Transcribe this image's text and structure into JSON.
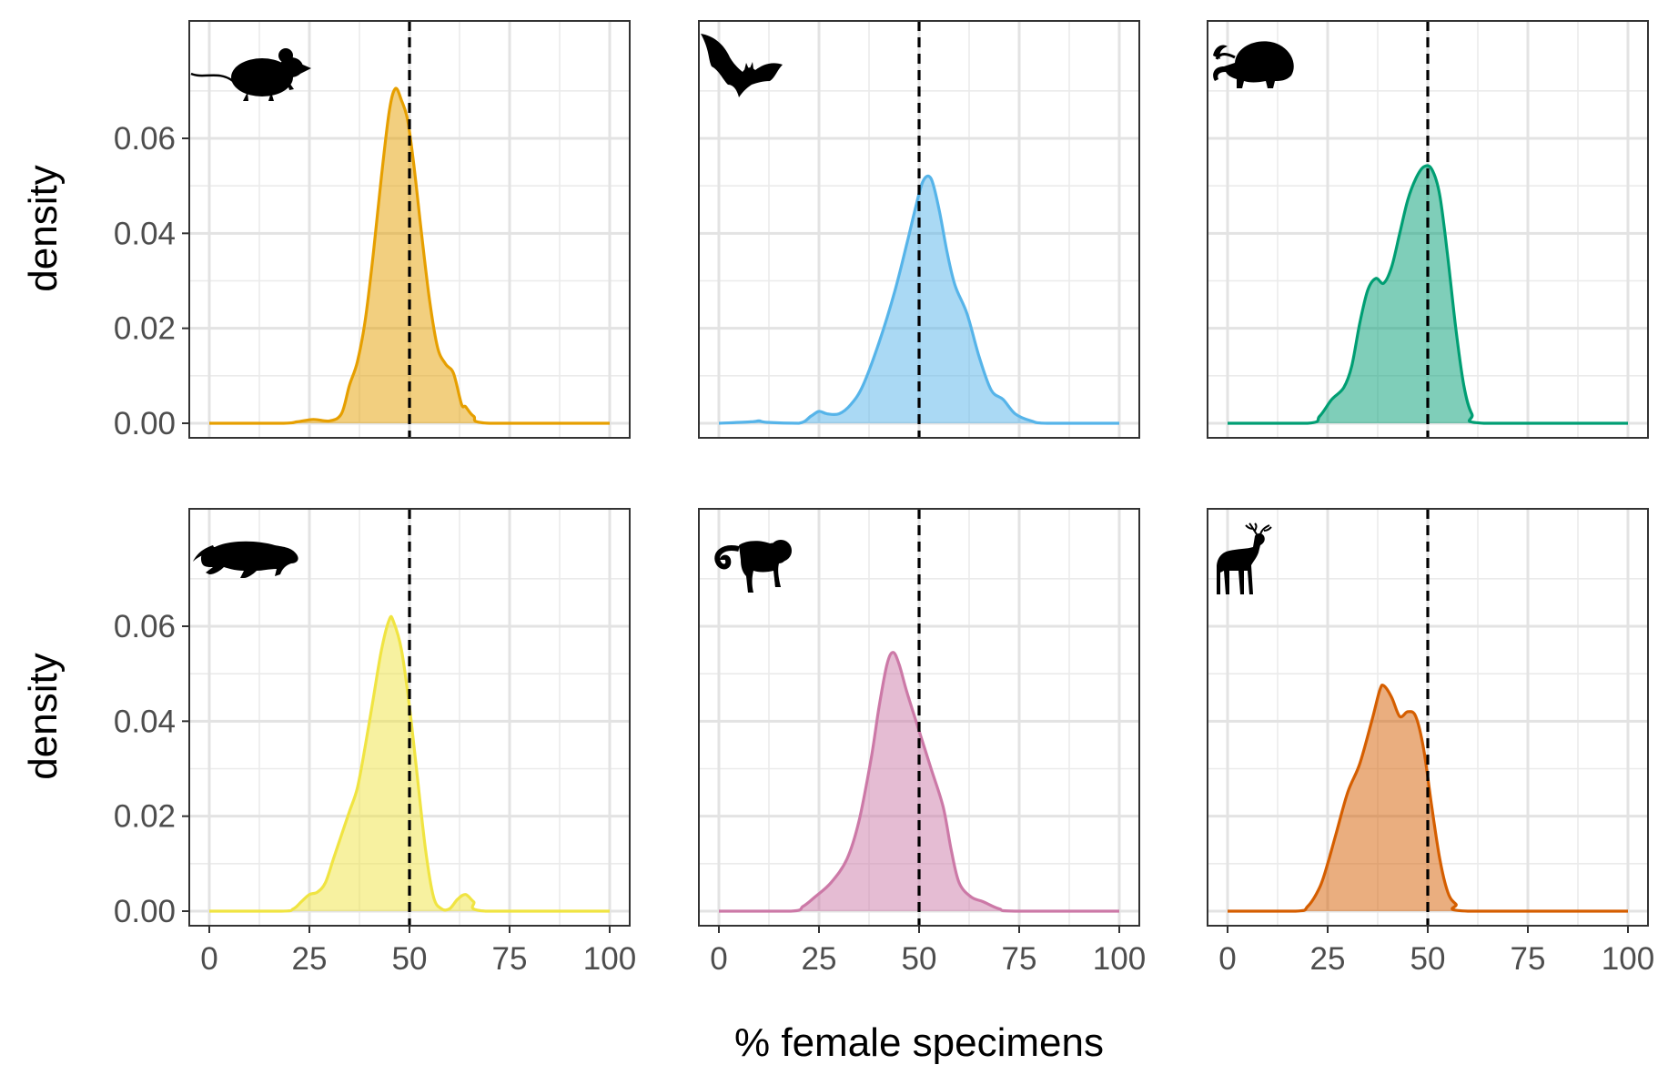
{
  "chart_data": {
    "type": "area",
    "layout": "facet-grid-2x3",
    "xlabel": "% female specimens",
    "ylabel": "density",
    "xlim": [
      0,
      100
    ],
    "ylim": [
      0,
      0.075
    ],
    "x_ticks": [
      "0",
      "25",
      "50",
      "75",
      "100"
    ],
    "y_ticks": [
      "0.00",
      "0.02",
      "0.04",
      "0.06"
    ],
    "reference_line": {
      "x": 50,
      "style": "dashed",
      "color": "#000000"
    },
    "grid": true,
    "panels": [
      {
        "icon": "mouse-icon",
        "color": "#E69F00",
        "points": [
          [
            0,
            0
          ],
          [
            18,
            0
          ],
          [
            22,
            0.0003
          ],
          [
            26,
            0.0008
          ],
          [
            30,
            0.0005
          ],
          [
            33,
            0.002
          ],
          [
            35,
            0.008
          ],
          [
            37,
            0.013
          ],
          [
            39,
            0.022
          ],
          [
            41,
            0.036
          ],
          [
            43,
            0.052
          ],
          [
            45,
            0.066
          ],
          [
            46.5,
            0.0705
          ],
          [
            48,
            0.068
          ],
          [
            49.5,
            0.064
          ],
          [
            51,
            0.055
          ],
          [
            53,
            0.04
          ],
          [
            55,
            0.026
          ],
          [
            57,
            0.016
          ],
          [
            59,
            0.0125
          ],
          [
            61,
            0.0105
          ],
          [
            63,
            0.004
          ],
          [
            64,
            0.0035
          ],
          [
            66,
            0.0015
          ],
          [
            70,
            0
          ],
          [
            100,
            0
          ]
        ]
      },
      {
        "icon": "bat-icon",
        "color": "#56B4E9",
        "points": [
          [
            0,
            0
          ],
          [
            8,
            0.0003
          ],
          [
            10,
            0.0005
          ],
          [
            12,
            0.0002
          ],
          [
            20,
            0
          ],
          [
            23,
            0.0015
          ],
          [
            25,
            0.0025
          ],
          [
            27,
            0.002
          ],
          [
            30,
            0.002
          ],
          [
            33,
            0.004
          ],
          [
            36,
            0.008
          ],
          [
            40,
            0.017
          ],
          [
            44,
            0.028
          ],
          [
            47,
            0.038
          ],
          [
            49,
            0.045
          ],
          [
            51,
            0.051
          ],
          [
            53,
            0.0515
          ],
          [
            55,
            0.045
          ],
          [
            57,
            0.036
          ],
          [
            59,
            0.029
          ],
          [
            62,
            0.023
          ],
          [
            65,
            0.014
          ],
          [
            68,
            0.007
          ],
          [
            71,
            0.005
          ],
          [
            74,
            0.002
          ],
          [
            78,
            0.0005
          ],
          [
            82,
            0
          ],
          [
            100,
            0
          ]
        ]
      },
      {
        "icon": "hedgehog-icon",
        "color": "#009E73",
        "points": [
          [
            0,
            0
          ],
          [
            20,
            0
          ],
          [
            23,
            0.0015
          ],
          [
            26,
            0.005
          ],
          [
            29,
            0.0075
          ],
          [
            31,
            0.012
          ],
          [
            33,
            0.021
          ],
          [
            35,
            0.028
          ],
          [
            37,
            0.0305
          ],
          [
            39,
            0.0295
          ],
          [
            41,
            0.033
          ],
          [
            43,
            0.04
          ],
          [
            45,
            0.047
          ],
          [
            47,
            0.0515
          ],
          [
            49,
            0.054
          ],
          [
            51,
            0.0535
          ],
          [
            53,
            0.048
          ],
          [
            55,
            0.035
          ],
          [
            57,
            0.02
          ],
          [
            59,
            0.008
          ],
          [
            61,
            0.002
          ],
          [
            64,
            0
          ],
          [
            100,
            0
          ]
        ]
      },
      {
        "icon": "jaguar-icon",
        "color": "#F0E442",
        "points": [
          [
            0,
            0
          ],
          [
            18,
            0
          ],
          [
            21,
            0.0005
          ],
          [
            23,
            0.002
          ],
          [
            25,
            0.0035
          ],
          [
            27,
            0.004
          ],
          [
            29,
            0.006
          ],
          [
            31,
            0.011
          ],
          [
            33,
            0.016
          ],
          [
            35,
            0.021
          ],
          [
            37,
            0.026
          ],
          [
            39,
            0.035
          ],
          [
            41,
            0.045
          ],
          [
            43,
            0.055
          ],
          [
            45,
            0.0615
          ],
          [
            46,
            0.061
          ],
          [
            48,
            0.055
          ],
          [
            50,
            0.043
          ],
          [
            52,
            0.028
          ],
          [
            54,
            0.013
          ],
          [
            56,
            0.003
          ],
          [
            58,
            0.0005
          ],
          [
            60,
            0.0005
          ],
          [
            62,
            0.0025
          ],
          [
            64,
            0.0035
          ],
          [
            66,
            0.002
          ],
          [
            69,
            0
          ],
          [
            100,
            0
          ]
        ]
      },
      {
        "icon": "monkey-icon",
        "color": "#CC79A7",
        "points": [
          [
            0,
            0
          ],
          [
            18,
            0
          ],
          [
            21,
            0.001
          ],
          [
            24,
            0.003
          ],
          [
            28,
            0.006
          ],
          [
            32,
            0.011
          ],
          [
            35,
            0.019
          ],
          [
            38,
            0.032
          ],
          [
            40,
            0.043
          ],
          [
            42,
            0.052
          ],
          [
            43.5,
            0.0545
          ],
          [
            45,
            0.052
          ],
          [
            47,
            0.046
          ],
          [
            50,
            0.038
          ],
          [
            53,
            0.03
          ],
          [
            56,
            0.022
          ],
          [
            58,
            0.013
          ],
          [
            60,
            0.006
          ],
          [
            63,
            0.003
          ],
          [
            66,
            0.002
          ],
          [
            70,
            0.0005
          ],
          [
            74,
            0
          ],
          [
            100,
            0
          ]
        ]
      },
      {
        "icon": "deer-icon",
        "color": "#D55E00",
        "points": [
          [
            0,
            0
          ],
          [
            17,
            0
          ],
          [
            20,
            0.001
          ],
          [
            23,
            0.005
          ],
          [
            25,
            0.01
          ],
          [
            27,
            0.016
          ],
          [
            30,
            0.025
          ],
          [
            33,
            0.031
          ],
          [
            36,
            0.04
          ],
          [
            38,
            0.0465
          ],
          [
            39,
            0.0475
          ],
          [
            41,
            0.045
          ],
          [
            43,
            0.041
          ],
          [
            45,
            0.042
          ],
          [
            47,
            0.041
          ],
          [
            49,
            0.034
          ],
          [
            51,
            0.022
          ],
          [
            53,
            0.011
          ],
          [
            55,
            0.004
          ],
          [
            57,
            0.0015
          ],
          [
            60,
            0
          ],
          [
            100,
            0
          ]
        ]
      }
    ]
  }
}
